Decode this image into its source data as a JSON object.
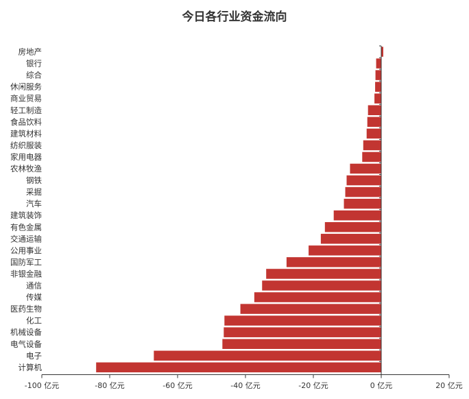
{
  "chart_data": {
    "type": "bar",
    "orientation": "horizontal",
    "title": "今日各行业资金流向",
    "xlabel": "",
    "ylabel": "",
    "xlim": [
      -100,
      20
    ],
    "x_ticks": [
      -100,
      -80,
      -60,
      -40,
      -20,
      0,
      20
    ],
    "x_tick_labels": [
      "-100 亿元",
      "-80 亿元",
      "-60 亿元",
      "-40 亿元",
      "-20 亿元",
      "0 亿元",
      "20 亿元"
    ],
    "grid": false,
    "legend": "none",
    "bar_color": "#c23531",
    "categories": [
      "房地产",
      "银行",
      "综合",
      "休闲服务",
      "商业贸易",
      "轻工制造",
      "食品饮料",
      "建筑材料",
      "纺织服装",
      "家用电器",
      "农林牧渔",
      "钢铁",
      "采掘",
      "汽车",
      "建筑装饰",
      "有色金属",
      "交通运输",
      "公用事业",
      "国防军工",
      "非银金融",
      "通信",
      "传媒",
      "医药生物",
      "化工",
      "机械设备",
      "电气设备",
      "电子",
      "计算机"
    ],
    "values": [
      0.6,
      -1.5,
      -1.7,
      -1.8,
      -2.0,
      -3.9,
      -4.1,
      -4.3,
      -5.3,
      -5.6,
      -9.2,
      -10.2,
      -10.6,
      -11.0,
      -14.0,
      -16.6,
      -17.8,
      -21.4,
      -27.9,
      -33.9,
      -35.1,
      -37.4,
      -41.5,
      -46.2,
      -46.4,
      -46.8,
      -67.0,
      -84.0
    ]
  }
}
